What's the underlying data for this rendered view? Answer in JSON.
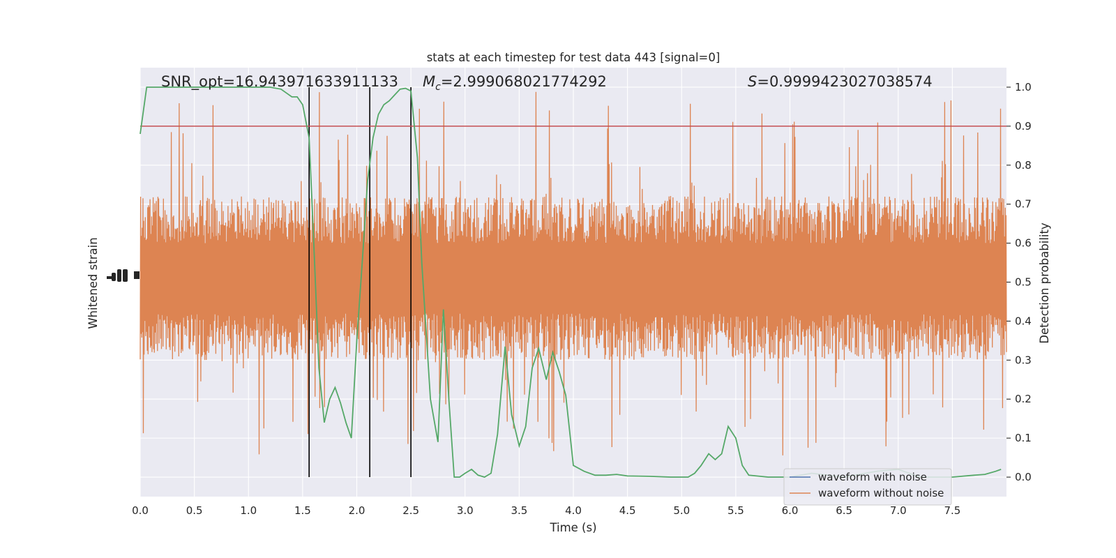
{
  "chart_data": {
    "type": "line",
    "title": "stats at each timestep for test data 443 [signal=0]",
    "xlabel": "Time (s)",
    "ylabel_left": "Whitened strain",
    "ylabel_right": "Detection probability",
    "xlim": [
      0.0,
      8.0
    ],
    "ylim_right": [
      -0.05,
      1.05
    ],
    "xticks": [
      0.0,
      0.5,
      1.0,
      1.5,
      2.0,
      2.5,
      3.0,
      3.5,
      4.0,
      4.5,
      5.0,
      5.5,
      6.0,
      6.5,
      7.0,
      7.5
    ],
    "xtick_labels": [
      "0.0",
      "0.5",
      "1.0",
      "1.5",
      "2.0",
      "2.5",
      "3.0",
      "3.5",
      "4.0",
      "4.5",
      "5.0",
      "5.5",
      "6.0",
      "6.5",
      "7.0",
      "7.5"
    ],
    "yticks_right": [
      0.0,
      0.1,
      0.2,
      0.3,
      0.4,
      0.5,
      0.6,
      0.7,
      0.8,
      0.9,
      1.0
    ],
    "ytick_labels_right": [
      "0.0",
      "0.1",
      "0.2",
      "0.3",
      "0.4",
      "0.5",
      "0.6",
      "0.7",
      "0.8",
      "0.9",
      "1.0"
    ],
    "grid": true,
    "legend_position": "lower-right",
    "legend": [
      {
        "label": "waveform with noise",
        "color": "#4c72b0"
      },
      {
        "label": "waveform without noise",
        "color": "#dd8452"
      }
    ],
    "annotations": {
      "snr": "SNR_opt=16.943971633911133",
      "mc_prefix": "M",
      "mc_sub": "c",
      "mc_value": "=2.999068021774292",
      "s_prefix": "S",
      "s_value": "=0.9999423027038574"
    },
    "threshold": {
      "value": 0.9,
      "color": "#c44e52"
    },
    "vertical_markers": [
      1.56,
      2.12,
      2.5
    ],
    "noise_band": {
      "center": 0.5,
      "color": "#dd8452",
      "typical_low": 0.3,
      "typical_high": 0.72,
      "max": 0.99,
      "min": 0.0
    },
    "series": [
      {
        "name": "Detection probability",
        "color": "#55a868",
        "x": [
          0.0,
          0.06,
          0.12,
          0.25,
          0.5,
          0.75,
          1.0,
          1.2,
          1.3,
          1.35,
          1.4,
          1.45,
          1.5,
          1.56,
          1.6,
          1.65,
          1.7,
          1.75,
          1.8,
          1.85,
          1.9,
          1.95,
          2.0,
          2.05,
          2.1,
          2.15,
          2.2,
          2.25,
          2.3,
          2.35,
          2.4,
          2.45,
          2.5,
          2.56,
          2.6,
          2.68,
          2.75,
          2.8,
          2.85,
          2.9,
          2.95,
          3.0,
          3.06,
          3.12,
          3.18,
          3.24,
          3.3,
          3.37,
          3.43,
          3.5,
          3.56,
          3.62,
          3.68,
          3.75,
          3.81,
          3.87,
          3.93,
          4.0,
          4.1,
          4.2,
          4.3,
          4.4,
          4.5,
          4.7,
          4.9,
          5.06,
          5.12,
          5.18,
          5.25,
          5.31,
          5.37,
          5.43,
          5.5,
          5.56,
          5.62,
          5.8,
          6.0,
          6.2,
          6.5,
          6.8,
          7.0,
          7.2,
          7.5,
          7.7,
          7.8,
          7.9,
          7.95
        ],
        "y": [
          0.88,
          1.0,
          1.0,
          1.0,
          1.0,
          1.0,
          1.0,
          1.0,
          0.995,
          0.985,
          0.975,
          0.975,
          0.955,
          0.87,
          0.62,
          0.28,
          0.14,
          0.2,
          0.23,
          0.19,
          0.14,
          0.1,
          0.35,
          0.55,
          0.76,
          0.87,
          0.93,
          0.955,
          0.965,
          0.98,
          0.995,
          0.997,
          0.99,
          0.82,
          0.55,
          0.2,
          0.09,
          0.43,
          0.2,
          0.0,
          0.0,
          0.01,
          0.02,
          0.005,
          0.0,
          0.01,
          0.11,
          0.335,
          0.16,
          0.08,
          0.13,
          0.28,
          0.33,
          0.25,
          0.32,
          0.27,
          0.21,
          0.03,
          0.015,
          0.005,
          0.005,
          0.007,
          0.003,
          0.002,
          0.0,
          0.0,
          0.01,
          0.03,
          0.06,
          0.045,
          0.06,
          0.13,
          0.1,
          0.03,
          0.005,
          0.0,
          0.0,
          0.01,
          0.0,
          0.015,
          0.02,
          0.0,
          0.0,
          0.005,
          0.007,
          0.015,
          0.02
        ]
      }
    ]
  }
}
